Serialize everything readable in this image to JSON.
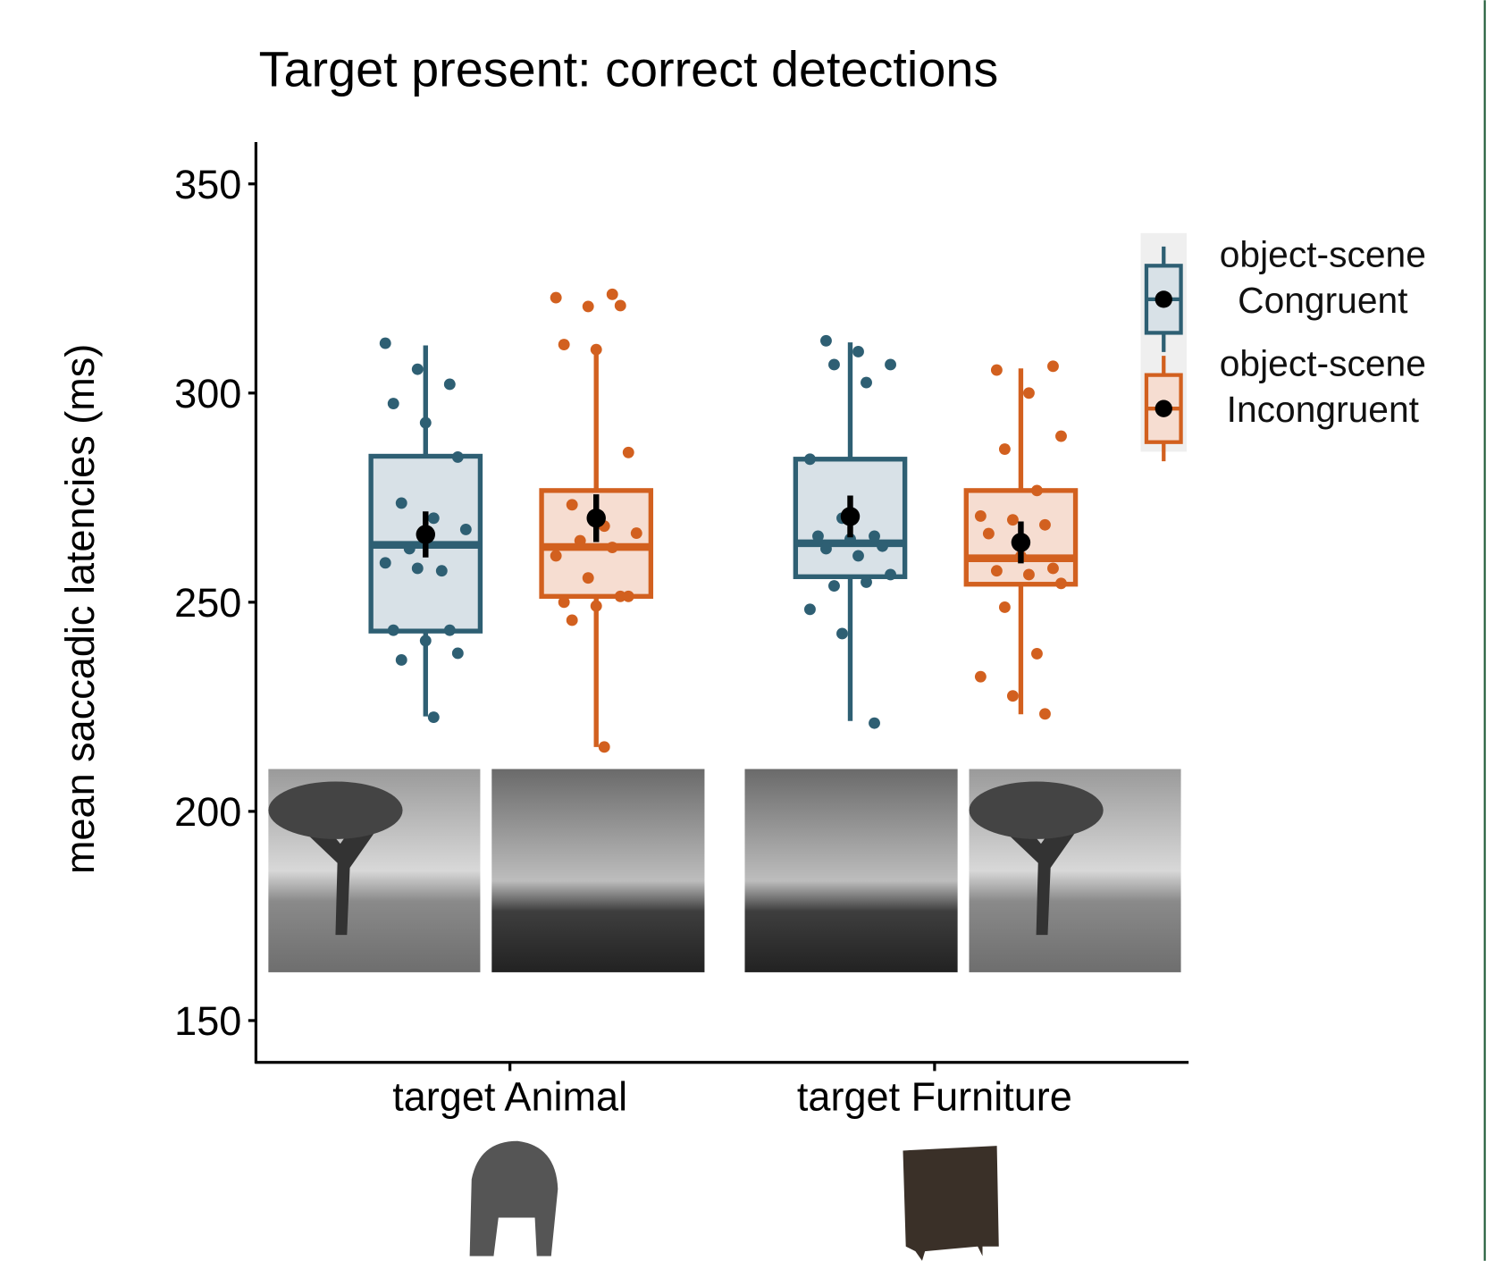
{
  "chart_data": {
    "type": "box",
    "title": "Target present: correct detections",
    "y_label": "mean saccadic latencies (ms)",
    "categories": [
      "target Animal",
      "target Furniture"
    ],
    "ylim": [
      140,
      360
    ],
    "yticks": [
      150,
      200,
      250,
      300,
      350
    ],
    "series": [
      {
        "name": "object-scene Congruent",
        "color": "#2e5f73",
        "fill": "#d8e1e7",
        "boxes": [
          {
            "min": 222.7,
            "q1": 243.1,
            "median": 263.7,
            "q3": 284.9,
            "max": 311.4,
            "mean": 266.2,
            "error": 5.5
          },
          {
            "min": 221.6,
            "q1": 256.1,
            "median": 264.1,
            "q3": 284.2,
            "max": 312.1,
            "mean": 270.5,
            "error": 5
          }
        ],
        "points": [
          [
            311.9,
            305.7,
            302.1,
            297.5,
            292.9,
            284.7,
            273.7,
            270.1,
            267.4,
            262.8,
            257.5,
            259.4,
            258.1,
            243.3,
            243.3,
            240.8,
            237.8,
            236.2,
            222.5
          ],
          [
            312.5,
            309.9,
            306.8,
            306.8,
            302.5,
            284.2,
            270.1,
            265.8,
            265.8,
            265.1,
            263.4,
            262.8,
            261.1,
            256.6,
            253.9,
            254.8,
            248.3,
            242.5,
            221.1
          ]
        ]
      },
      {
        "name": "object-scene Incongruent",
        "color": "#d2601f",
        "fill": "#f6ddd1",
        "boxes": [
          {
            "min": 215.4,
            "q1": 251.4,
            "median": 263.2,
            "q3": 276.7,
            "max": 311.2,
            "mean": 270.1,
            "error": 5.7
          },
          {
            "min": 223.2,
            "q1": 254.3,
            "median": 260.5,
            "q3": 276.7,
            "max": 305.9,
            "mean": 264.3,
            "error": 5
          }
        ],
        "points": [
          [
            323.6,
            322.8,
            320.7,
            320.9,
            311.6,
            310.4,
            285.8,
            273.3,
            268.2,
            266.5,
            264.7,
            263.1,
            261.1,
            255.8,
            251.4,
            250.0,
            249.1,
            251.4,
            245.7,
            215.4
          ],
          [
            306.4,
            305.5,
            300.0,
            289.7,
            286.6,
            276.7,
            270.6,
            269.7,
            268.5,
            266.4,
            261.0,
            258.1,
            257.5,
            256.6,
            254.5,
            248.8,
            237.7,
            232.2,
            227.6,
            223.3
          ]
        ]
      }
    ]
  }
}
